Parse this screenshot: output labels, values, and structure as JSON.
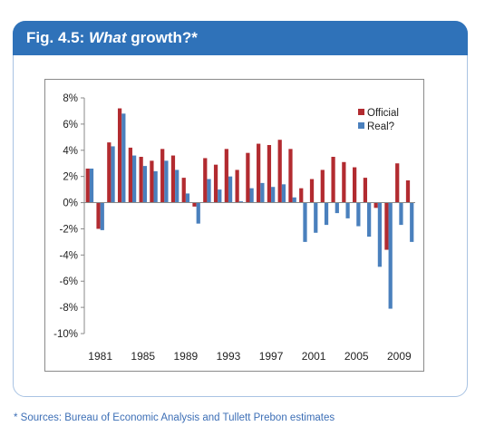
{
  "figure": {
    "label_prefix": "Fig. 4.5: ",
    "label_italic": "What",
    "label_suffix": " growth?*",
    "source": "* Sources: Bureau of Economic Analysis and Tullett Prebon estimates"
  },
  "colors": {
    "official": "#b22b30",
    "real": "#4a80bd",
    "header": "#2f72b9"
  },
  "chart_data": {
    "type": "bar",
    "title": "",
    "xlabel": "",
    "ylabel": "",
    "ylim": [
      -10,
      8
    ],
    "yticks": [
      -10,
      -8,
      -6,
      -4,
      -2,
      0,
      2,
      4,
      6,
      8
    ],
    "ytick_labels": [
      "-10%",
      "-8%",
      "-6%",
      "-4%",
      "-2%",
      "0%",
      "2%",
      "4%",
      "6%",
      "8%"
    ],
    "categories": [
      1980,
      1981,
      1982,
      1983,
      1984,
      1985,
      1986,
      1987,
      1988,
      1989,
      1990,
      1991,
      1992,
      1993,
      1994,
      1995,
      1996,
      1997,
      1998,
      1999,
      2000,
      2001,
      2002,
      2003,
      2004,
      2005,
      2006,
      2007,
      2008,
      2009,
      2010
    ],
    "xtick_labels": [
      "1981",
      "1985",
      "1989",
      "1993",
      "1997",
      "2001",
      "2005",
      "2009"
    ],
    "legend_position": "top-right",
    "grid": false,
    "series": [
      {
        "name": "Official",
        "values": [
          2.6,
          -2.0,
          4.6,
          7.2,
          4.2,
          3.5,
          3.2,
          4.1,
          3.6,
          1.9,
          -0.3,
          3.4,
          2.9,
          4.1,
          2.5,
          3.8,
          4.5,
          4.4,
          4.8,
          4.1,
          1.1,
          1.8,
          2.5,
          3.5,
          3.1,
          2.7,
          1.9,
          -0.4,
          -3.6,
          3.0,
          1.7
        ]
      },
      {
        "name": "Real?",
        "values": [
          2.6,
          -2.1,
          4.3,
          6.8,
          3.6,
          2.8,
          2.4,
          3.2,
          2.5,
          0.7,
          -1.6,
          1.8,
          1.0,
          2.0,
          0.1,
          1.1,
          1.5,
          1.2,
          1.4,
          0.4,
          -3.0,
          -2.3,
          -1.7,
          -0.8,
          -1.2,
          -1.8,
          -2.6,
          -4.9,
          -8.1,
          -1.7,
          -3.0
        ]
      }
    ]
  }
}
